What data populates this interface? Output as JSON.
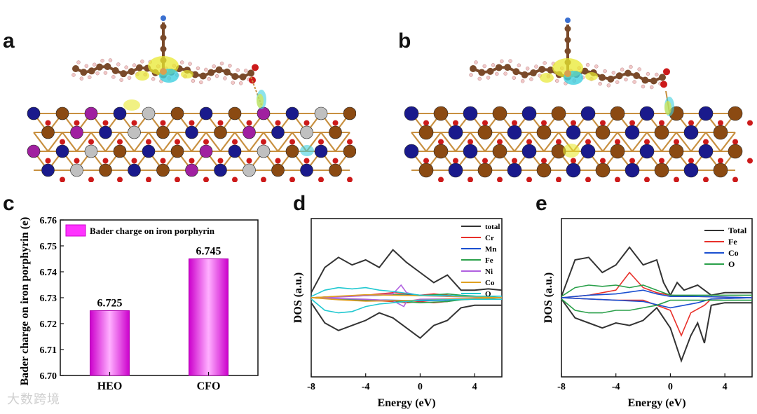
{
  "panels": {
    "a": "a",
    "b": "b",
    "c": "c",
    "d": "d",
    "e": "e"
  },
  "colors": {
    "magenta": "#ff33ff",
    "magenta_dark": "#cc00cc",
    "oxygen": "#cc1a1a",
    "cation_blue": "#1a1a8c",
    "cation_brown": "#8b4a12",
    "carbon": "#7a4a2a",
    "hydrogen": "#f2c8c8",
    "isosurface_yellow": "#e8e830",
    "isosurface_cyan": "#40d0e0"
  },
  "chart_data": [
    {
      "id": "c",
      "type": "bar",
      "categories": [
        "HEO",
        "CFO"
      ],
      "values": [
        6.725,
        6.745
      ],
      "data_labels": [
        "6.725",
        "6.745"
      ],
      "ylabel": "Bader charge on iron porphyrin (e)",
      "ylim": [
        6.7,
        6.76
      ],
      "yticks": [
        "6.70",
        "6.71",
        "6.72",
        "6.73",
        "6.74",
        "6.75",
        "6.76"
      ],
      "legend": [
        "Bader charge on iron porphyrin"
      ],
      "legend_position": "top-left"
    },
    {
      "id": "d",
      "type": "line",
      "xlabel": "Energy (eV)",
      "ylabel": "DOS (a.u.)",
      "xlim": [
        -8,
        6
      ],
      "xticks": [
        "-8",
        "-4",
        "0",
        "4"
      ],
      "legend_position": "top-right",
      "series": [
        {
          "name": "total",
          "color": "#333333",
          "up": [
            [
              -8,
              0.2
            ],
            [
              -7,
              1.2
            ],
            [
              -6,
              1.6
            ],
            [
              -5,
              1.3
            ],
            [
              -4,
              1.5
            ],
            [
              -3,
              1.2
            ],
            [
              -2,
              1.9
            ],
            [
              -1,
              1.4
            ],
            [
              0,
              1.0
            ],
            [
              1,
              0.6
            ],
            [
              2,
              0.9
            ],
            [
              3,
              0.3
            ],
            [
              4,
              0.3
            ],
            [
              5,
              0.35
            ],
            [
              6,
              0.3
            ]
          ],
          "down": [
            [
              -8,
              -0.2
            ],
            [
              -7,
              -1.0
            ],
            [
              -6,
              -1.3
            ],
            [
              -5,
              -1.1
            ],
            [
              -4,
              -0.9
            ],
            [
              -3,
              -0.6
            ],
            [
              -2,
              -0.8
            ],
            [
              -1,
              -1.2
            ],
            [
              0,
              -1.6
            ],
            [
              1,
              -1.1
            ],
            [
              2,
              -0.9
            ],
            [
              3,
              -0.4
            ],
            [
              4,
              -0.3
            ],
            [
              5,
              -0.3
            ],
            [
              6,
              -0.3
            ]
          ]
        },
        {
          "name": "Cr",
          "color": "#e8302a",
          "up": [
            [
              -8,
              0
            ],
            [
              -6,
              0.05
            ],
            [
              -4,
              0.1
            ],
            [
              -2,
              0.2
            ],
            [
              -1,
              0.15
            ],
            [
              0,
              0.1
            ],
            [
              1,
              0.15
            ],
            [
              2,
              0.1
            ],
            [
              3,
              0.05
            ],
            [
              6,
              0
            ]
          ],
          "down": [
            [
              -8,
              0
            ],
            [
              -6,
              -0.05
            ],
            [
              -4,
              -0.1
            ],
            [
              -2,
              -0.15
            ],
            [
              -1,
              -0.2
            ],
            [
              0,
              -0.15
            ],
            [
              1,
              -0.2
            ],
            [
              2,
              -0.15
            ],
            [
              3,
              -0.05
            ],
            [
              6,
              0
            ]
          ]
        },
        {
          "name": "Mn",
          "color": "#1a4fd0",
          "up": [
            [
              -8,
              0
            ],
            [
              -6,
              0.05
            ],
            [
              -4,
              0.08
            ],
            [
              -2,
              0.12
            ],
            [
              0,
              0.1
            ],
            [
              2,
              0.08
            ],
            [
              3,
              0.05
            ],
            [
              6,
              0
            ]
          ],
          "down": [
            [
              -8,
              0
            ],
            [
              -6,
              -0.05
            ],
            [
              -4,
              -0.08
            ],
            [
              -2,
              -0.1
            ],
            [
              0,
              -0.12
            ],
            [
              2,
              -0.1
            ],
            [
              3,
              -0.05
            ],
            [
              6,
              0
            ]
          ]
        },
        {
          "name": "Fe",
          "color": "#2aa04a",
          "up": [
            [
              -8,
              0
            ],
            [
              -6,
              0.05
            ],
            [
              -4,
              0.1
            ],
            [
              -2,
              0.12
            ],
            [
              0,
              0.08
            ],
            [
              2,
              0.15
            ],
            [
              3,
              0.1
            ],
            [
              6,
              0
            ]
          ],
          "down": [
            [
              -8,
              0
            ],
            [
              -6,
              -0.05
            ],
            [
              -4,
              -0.08
            ],
            [
              -2,
              -0.12
            ],
            [
              0,
              -0.2
            ],
            [
              2,
              -0.15
            ],
            [
              3,
              -0.08
            ],
            [
              6,
              0
            ]
          ]
        },
        {
          "name": "Ni",
          "color": "#b060e0",
          "up": [
            [
              -8,
              0
            ],
            [
              -6,
              0.03
            ],
            [
              -4,
              0.08
            ],
            [
              -2,
              0.15
            ],
            [
              -1.4,
              0.5
            ],
            [
              -1,
              0.2
            ],
            [
              0,
              0.08
            ],
            [
              2,
              0.05
            ],
            [
              6,
              0
            ]
          ],
          "down": [
            [
              -8,
              0
            ],
            [
              -6,
              -0.03
            ],
            [
              -4,
              -0.06
            ],
            [
              -2,
              -0.12
            ],
            [
              -1.2,
              -0.35
            ],
            [
              -1,
              -0.15
            ],
            [
              0,
              -0.06
            ],
            [
              2,
              -0.05
            ],
            [
              6,
              0
            ]
          ]
        },
        {
          "name": "Co",
          "color": "#e0a020",
          "up": [
            [
              -8,
              0
            ],
            [
              -6,
              0.06
            ],
            [
              -4,
              0.12
            ],
            [
              -2,
              0.1
            ],
            [
              0,
              0.08
            ],
            [
              2,
              0.06
            ],
            [
              6,
              0
            ]
          ],
          "down": [
            [
              -8,
              0
            ],
            [
              -6,
              -0.08
            ],
            [
              -4,
              -0.14
            ],
            [
              -2,
              -0.12
            ],
            [
              0,
              -0.1
            ],
            [
              2,
              -0.06
            ],
            [
              6,
              0
            ]
          ]
        },
        {
          "name": "O",
          "color": "#20c8d0",
          "up": [
            [
              -8,
              0.05
            ],
            [
              -7,
              0.3
            ],
            [
              -6,
              0.4
            ],
            [
              -5,
              0.35
            ],
            [
              -4,
              0.4
            ],
            [
              -3,
              0.3
            ],
            [
              -2,
              0.25
            ],
            [
              0,
              0.1
            ],
            [
              2,
              0.08
            ],
            [
              4,
              0.06
            ],
            [
              6,
              0.06
            ]
          ],
          "down": [
            [
              -8,
              -0.05
            ],
            [
              -7,
              -0.5
            ],
            [
              -6,
              -0.6
            ],
            [
              -5,
              -0.55
            ],
            [
              -4,
              -0.35
            ],
            [
              -3,
              -0.25
            ],
            [
              -2,
              -0.2
            ],
            [
              0,
              -0.1
            ],
            [
              2,
              -0.08
            ],
            [
              4,
              -0.06
            ],
            [
              6,
              -0.06
            ]
          ]
        }
      ]
    },
    {
      "id": "e",
      "type": "line",
      "xlabel": "Energy (eV)",
      "ylabel": "DOS (a.u.)",
      "xlim": [
        -8,
        6
      ],
      "xticks": [
        "-8",
        "-4",
        "0",
        "4"
      ],
      "legend_position": "top-right",
      "series": [
        {
          "name": "Total",
          "color": "#333333",
          "up": [
            [
              -8,
              0.05
            ],
            [
              -7,
              1.5
            ],
            [
              -6,
              1.6
            ],
            [
              -5,
              1.0
            ],
            [
              -4,
              1.3
            ],
            [
              -3,
              2.0
            ],
            [
              -2,
              1.3
            ],
            [
              -1,
              1.5
            ],
            [
              -0.5,
              0.6
            ],
            [
              0,
              0.1
            ],
            [
              0.5,
              0.6
            ],
            [
              1,
              0.3
            ],
            [
              2,
              0.5
            ],
            [
              3,
              0.1
            ],
            [
              4,
              0.2
            ],
            [
              5,
              0.2
            ],
            [
              6,
              0.2
            ]
          ],
          "down": [
            [
              -8,
              -0.05
            ],
            [
              -7,
              -0.8
            ],
            [
              -6,
              -1.0
            ],
            [
              -5,
              -1.2
            ],
            [
              -4,
              -1.0
            ],
            [
              -3,
              -1.1
            ],
            [
              -2,
              -0.9
            ],
            [
              -1,
              -0.4
            ],
            [
              0,
              -1.2
            ],
            [
              0.8,
              -2.5
            ],
            [
              1.5,
              -1.5
            ],
            [
              2,
              -1.0
            ],
            [
              2.5,
              -1.8
            ],
            [
              3,
              -0.3
            ],
            [
              4,
              -0.2
            ],
            [
              5,
              -0.2
            ],
            [
              6,
              -0.2
            ]
          ]
        },
        {
          "name": "Fe",
          "color": "#e8302a",
          "up": [
            [
              -8,
              0
            ],
            [
              -6,
              0.1
            ],
            [
              -4,
              0.3
            ],
            [
              -3,
              1.0
            ],
            [
              -2,
              0.4
            ],
            [
              -1,
              0.2
            ],
            [
              0,
              0.1
            ],
            [
              2,
              0.05
            ],
            [
              6,
              0
            ]
          ],
          "down": [
            [
              -8,
              0
            ],
            [
              -6,
              -0.05
            ],
            [
              -4,
              -0.1
            ],
            [
              -2,
              -0.1
            ],
            [
              0,
              -0.5
            ],
            [
              0.8,
              -1.5
            ],
            [
              1.5,
              -0.6
            ],
            [
              2.5,
              -0.3
            ],
            [
              3,
              -0.05
            ],
            [
              6,
              0
            ]
          ]
        },
        {
          "name": "Co",
          "color": "#1a4fd0",
          "up": [
            [
              -8,
              0
            ],
            [
              -6,
              0.1
            ],
            [
              -4,
              0.15
            ],
            [
              -2,
              0.3
            ],
            [
              -1,
              0.15
            ],
            [
              0,
              0.05
            ],
            [
              2,
              0.05
            ],
            [
              6,
              0
            ]
          ],
          "down": [
            [
              -8,
              0
            ],
            [
              -6,
              -0.05
            ],
            [
              -4,
              -0.1
            ],
            [
              -2,
              -0.15
            ],
            [
              0,
              -0.4
            ],
            [
              1,
              -0.3
            ],
            [
              2,
              -0.2
            ],
            [
              3,
              -0.05
            ],
            [
              6,
              0
            ]
          ]
        },
        {
          "name": "O",
          "color": "#2aa04a",
          "up": [
            [
              -8,
              0.05
            ],
            [
              -7,
              0.4
            ],
            [
              -6,
              0.5
            ],
            [
              -5,
              0.45
            ],
            [
              -4,
              0.5
            ],
            [
              -3,
              0.4
            ],
            [
              -2,
              0.5
            ],
            [
              -1,
              0.3
            ],
            [
              0,
              0.1
            ],
            [
              2,
              0.1
            ],
            [
              4,
              0.1
            ],
            [
              6,
              0.1
            ]
          ],
          "down": [
            [
              -8,
              -0.05
            ],
            [
              -7,
              -0.5
            ],
            [
              -6,
              -0.6
            ],
            [
              -5,
              -0.6
            ],
            [
              -4,
              -0.5
            ],
            [
              -3,
              -0.5
            ],
            [
              -2,
              -0.4
            ],
            [
              -1,
              -0.3
            ],
            [
              0,
              -0.1
            ],
            [
              2,
              -0.1
            ],
            [
              4,
              -0.1
            ],
            [
              6,
              -0.1
            ]
          ]
        }
      ]
    }
  ],
  "watermark": "大数跨境"
}
